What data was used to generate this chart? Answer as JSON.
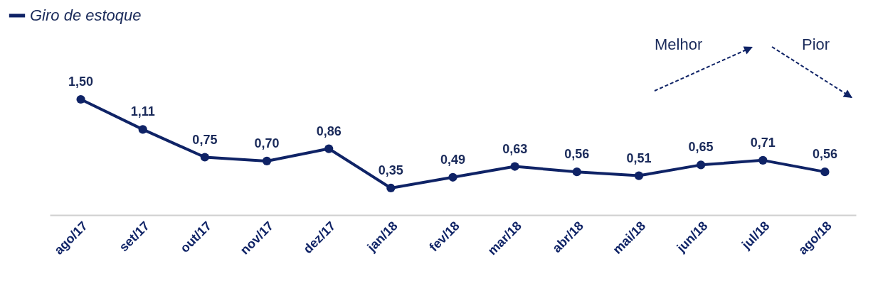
{
  "chart_data": {
    "type": "line",
    "categories": [
      "ago/17",
      "set/17",
      "out/17",
      "nov/17",
      "dez/17",
      "jan/18",
      "fev/18",
      "mar/18",
      "abr/18",
      "mai/18",
      "jun/18",
      "jul/18",
      "ago/18"
    ],
    "series": [
      {
        "name": "Giro de estoque",
        "color": "#0f2366",
        "values": [
          1.5,
          1.11,
          0.75,
          0.7,
          0.86,
          0.35,
          0.49,
          0.63,
          0.56,
          0.51,
          0.65,
          0.71,
          0.56
        ],
        "value_labels": [
          "1,50",
          "1,11",
          "0,75",
          "0,70",
          "0,86",
          "0,35",
          "0,49",
          "0,63",
          "0,56",
          "0,51",
          "0,65",
          "0,71",
          "0,56"
        ]
      }
    ],
    "marker": "circle",
    "line_style": "solid",
    "legend": "top left",
    "grid": false,
    "annotations": [
      "Melhor",
      "Pior"
    ]
  }
}
